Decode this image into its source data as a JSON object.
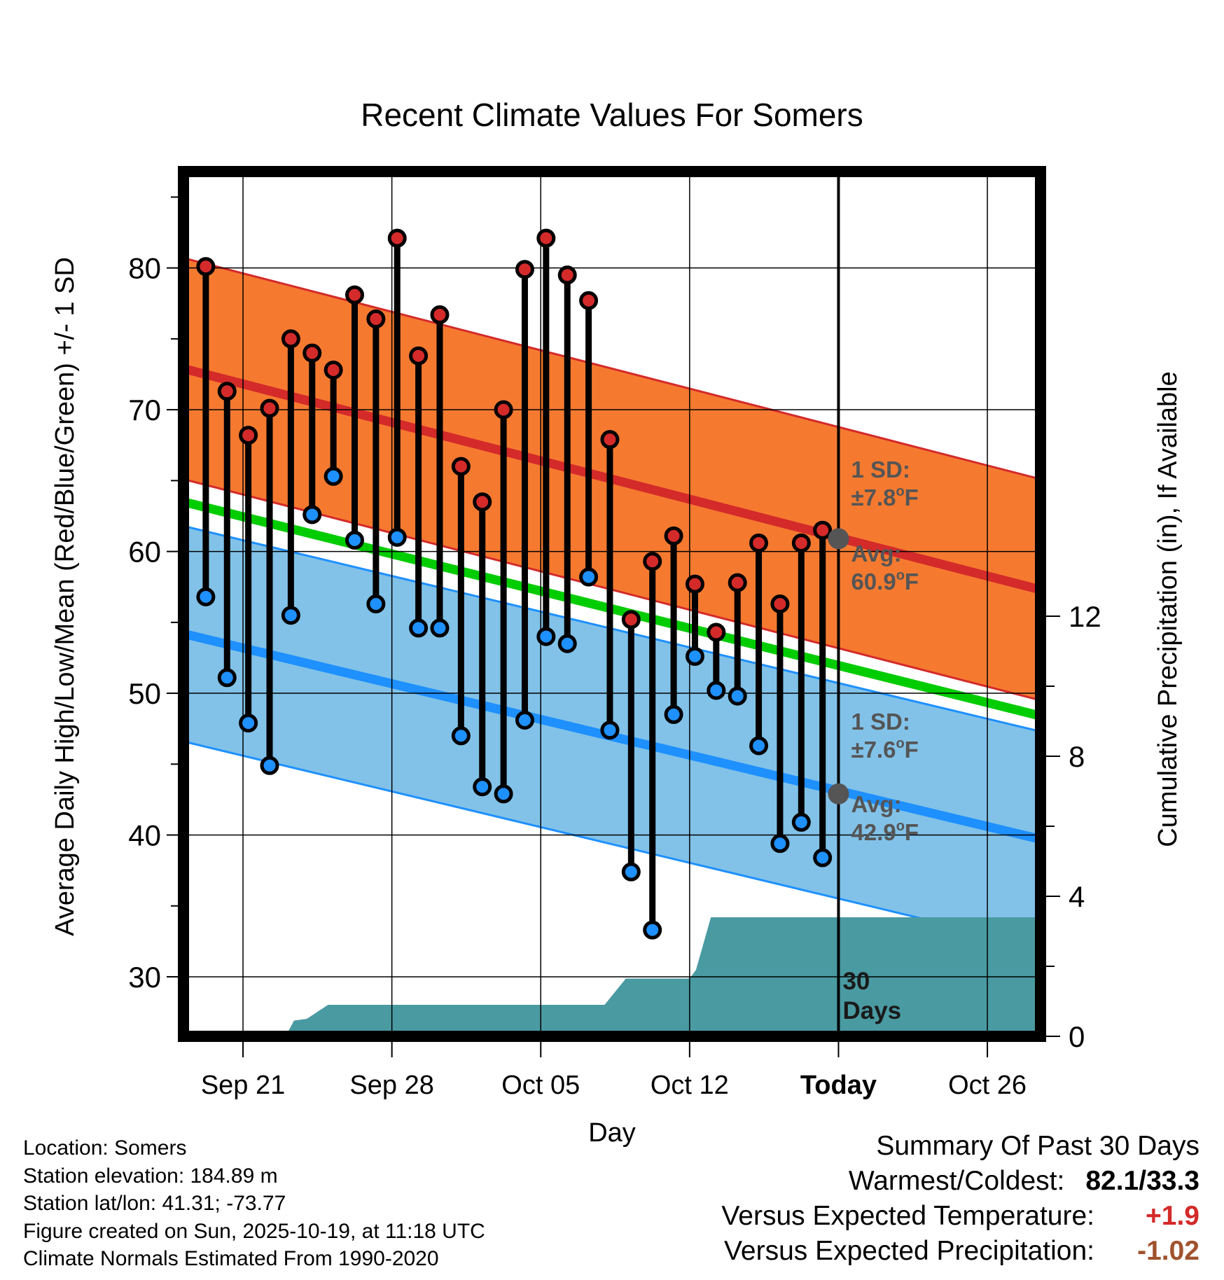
{
  "chart_data": {
    "type": "climate-range",
    "title": "Recent Climate Values For Somers",
    "xlabel": "Day",
    "ylabel_left": "Average Daily High/Low/Mean (Red/Blue/Green) +/- 1 SD",
    "ylabel_right": "Cumulative Precipitation (in), If Available",
    "x_tick_labels": [
      "Sep 21",
      "Sep 28",
      "Oct 05",
      "Oct 12",
      "Today",
      "Oct 26"
    ],
    "x_tick_days": [
      2,
      9,
      16,
      23,
      30,
      37
    ],
    "x_range_days": [
      -0.8,
      39.5
    ],
    "today_day": 30,
    "y_left_ticks": [
      30,
      40,
      50,
      60,
      70,
      80
    ],
    "y_left_range": [
      25.8,
      86.8
    ],
    "y_right_ticks": [
      0,
      4,
      8,
      12
    ],
    "y_right_range": [
      0,
      24.7
    ],
    "days": [
      0,
      1,
      2,
      3,
      4,
      5,
      6,
      7,
      8,
      9,
      10,
      11,
      12,
      13,
      14,
      15,
      16,
      17,
      18,
      19,
      20,
      21,
      22,
      23,
      24,
      25,
      26,
      27,
      28,
      29
    ],
    "highs": [
      80.1,
      71.3,
      68.2,
      70.1,
      75.0,
      74.0,
      72.8,
      78.1,
      76.4,
      82.1,
      73.8,
      76.7,
      66.0,
      63.5,
      70.0,
      79.9,
      82.1,
      79.5,
      77.7,
      67.9,
      55.2,
      59.3,
      61.1,
      57.7,
      54.3,
      57.8,
      60.6,
      56.3,
      60.6,
      61.5
    ],
    "lows": [
      56.8,
      51.1,
      47.9,
      44.9,
      55.5,
      62.6,
      65.3,
      60.8,
      56.3,
      61.0,
      54.6,
      54.6,
      47.0,
      43.4,
      42.9,
      48.1,
      54.0,
      53.5,
      58.2,
      47.4,
      37.4,
      33.3,
      48.5,
      52.6,
      50.2,
      49.8,
      46.3,
      39.4,
      40.9,
      38.4
    ],
    "normal_high_start": 72.9,
    "normal_high_end": 57.3,
    "normal_high_sd": 7.8,
    "normal_low_start": 54.2,
    "normal_low_end": 39.7,
    "normal_low_sd": 7.6,
    "normal_mean_start": 63.5,
    "normal_mean_end": 48.4,
    "precip_days": [
      -0.8,
      4.0,
      4.4,
      5.0,
      6.0,
      7.0,
      8.0,
      9.0,
      10.0,
      11.0,
      12.0,
      13.0,
      14.0,
      15.0,
      16.0,
      17.0,
      18.0,
      19.0,
      20.0,
      21.0,
      22.0,
      23.0,
      23.3,
      24.0,
      25.0,
      26.0,
      27.0,
      28.0,
      29.0,
      30.0,
      31.0,
      39.5
    ],
    "precip_cum": [
      0.0,
      0.0,
      0.45,
      0.5,
      0.9,
      0.9,
      0.9,
      0.9,
      0.9,
      0.9,
      0.9,
      0.9,
      0.9,
      0.9,
      0.9,
      0.9,
      0.9,
      0.9,
      1.65,
      1.65,
      1.65,
      1.65,
      1.9,
      3.4,
      3.4,
      3.4,
      3.4,
      3.4,
      3.4,
      3.4,
      3.4,
      3.4
    ],
    "high_sd_label": "1 SD:",
    "high_sd_value": "±7.8",
    "high_avg_label": "Avg:",
    "high_avg_value": "60.9",
    "low_sd_label": "1 SD:",
    "low_sd_value": "±7.6",
    "low_avg_label": "Avg:",
    "low_avg_value": "42.9",
    "unit_o": "o",
    "unit_f": "F",
    "today_high_avg": 60.9,
    "today_low_avg": 42.9,
    "days_label_1": "30",
    "days_label_2": "Days",
    "colors": {
      "high_band": "#f57a30",
      "high_line": "#d42a2a",
      "low_band": "#82c2e8",
      "low_line": "#1e90ff",
      "mean_line": "#00cc00",
      "precip": "#4a9aa2",
      "high_dot": "#d42a2a",
      "low_dot": "#1e90ff",
      "avg_marker": "#555555"
    }
  },
  "info": {
    "location": "Location: Somers",
    "elevation": "Station elevation: 184.89 m",
    "latlon": "Station lat/lon: 41.31; -73.77",
    "created": "Figure created on Sun, 2025-10-19, at 11:18 UTC",
    "normals": "Climate Normals Estimated From 1990-2020"
  },
  "summary": {
    "title": "Summary Of Past 30 Days",
    "warm_cold_label": "Warmest/Coldest:",
    "warm_cold_value": "82.1/33.3",
    "temp_label": "Versus Expected Temperature:",
    "temp_value": "+1.9",
    "temp_color": "#d42a2a",
    "precip_label": "Versus Expected Precipitation:",
    "precip_value": "-1.02",
    "precip_color": "#a0522d"
  }
}
